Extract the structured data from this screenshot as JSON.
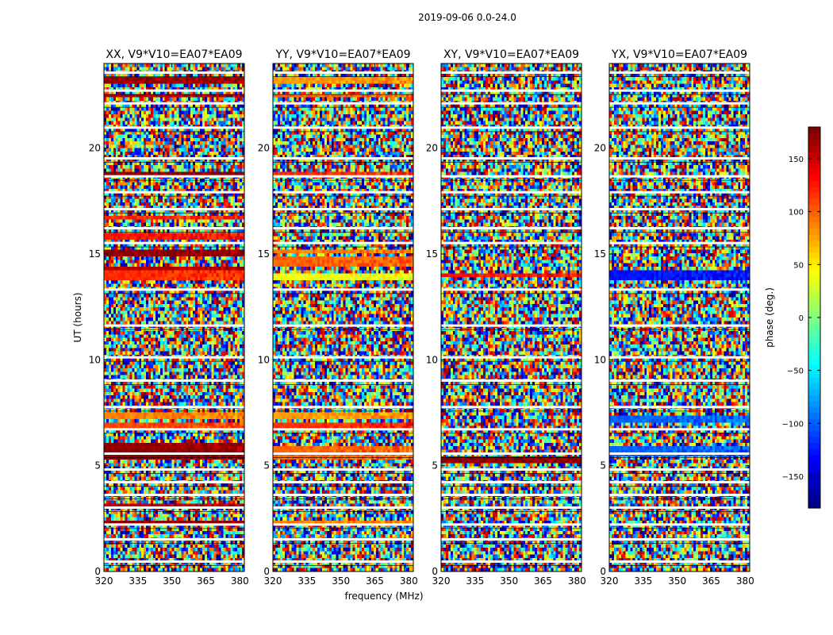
{
  "suptitle": "2019-09-06 0.0-24.0",
  "chart_data": [
    {
      "type": "heatmap",
      "title": "XX, V9*V10=EA07*EA09",
      "x": {
        "label": "",
        "range": [
          320,
          382
        ],
        "ticks": [
          320,
          335,
          350,
          365,
          380
        ]
      },
      "y": {
        "label": "UT (hours)",
        "range": [
          0,
          24
        ],
        "ticks": [
          0,
          5,
          10,
          15,
          20
        ]
      },
      "coherent_bands": [
        {
          "t": [
            23.1,
            23.3
          ],
          "phase": 170
        },
        {
          "t": [
            22.4,
            22.55
          ],
          "phase": 160
        },
        {
          "t": [
            18.8,
            18.95
          ],
          "phase": 175
        },
        {
          "t": [
            16.6,
            16.75
          ],
          "phase": 120
        },
        {
          "t": [
            15.75,
            15.95
          ],
          "phase": 130
        },
        {
          "t": [
            14.8,
            15.15
          ],
          "phase": 175
        },
        {
          "t": [
            14.3,
            14.45
          ],
          "phase": 160
        },
        {
          "t": [
            13.8,
            14.2
          ],
          "phase": 120
        },
        {
          "t": [
            7.2,
            7.6
          ],
          "phase": 90
        },
        {
          "t": [
            6.8,
            7.1
          ],
          "phase": 110
        },
        {
          "t": [
            5.25,
            6.1
          ],
          "phase": 175
        },
        {
          "t": [
            3.05,
            3.15
          ],
          "phase": 160
        },
        {
          "t": [
            2.3,
            2.45
          ],
          "phase": 175
        }
      ]
    },
    {
      "type": "heatmap",
      "title": "YY, V9*V10=EA07*EA09",
      "x": {
        "label": "frequency (MHz)",
        "range": [
          320,
          382
        ],
        "ticks": [
          320,
          335,
          350,
          365,
          380
        ]
      },
      "y": {
        "label": "",
        "range": [
          0,
          24
        ],
        "ticks": [
          0,
          5,
          10,
          15,
          20
        ]
      },
      "coherent_bands": [
        {
          "t": [
            23.1,
            23.3
          ],
          "phase": 80
        },
        {
          "t": [
            22.4,
            22.55
          ],
          "phase": 100
        },
        {
          "t": [
            18.8,
            18.95
          ],
          "phase": 120
        },
        {
          "t": [
            15.0,
            15.2
          ],
          "phase": 90
        },
        {
          "t": [
            14.4,
            14.8
          ],
          "phase": 100
        },
        {
          "t": [
            13.75,
            14.15
          ],
          "phase": 40
        },
        {
          "t": [
            7.2,
            7.6
          ],
          "phase": 80
        },
        {
          "t": [
            6.8,
            7.1
          ],
          "phase": 120
        },
        {
          "t": [
            5.25,
            5.9
          ],
          "phase": 100
        },
        {
          "t": [
            2.3,
            2.45
          ],
          "phase": 90
        }
      ]
    },
    {
      "type": "heatmap",
      "title": "XY, V9*V10=EA07*EA09",
      "x": {
        "label": "",
        "range": [
          320,
          382
        ],
        "ticks": [
          320,
          335,
          350,
          365,
          380
        ]
      },
      "y": {
        "label": "",
        "range": [
          0,
          24
        ],
        "ticks": [
          0,
          5,
          10,
          15,
          20
        ]
      },
      "coherent_bands": [
        {
          "t": [
            13.9,
            14.1
          ],
          "phase": 130
        },
        {
          "t": [
            5.1,
            5.5
          ],
          "phase": 175
        }
      ]
    },
    {
      "type": "heatmap",
      "title": "YX, V9*V10=EA07*EA09",
      "x": {
        "label": "",
        "range": [
          320,
          382
        ],
        "ticks": [
          320,
          335,
          350,
          365,
          380
        ]
      },
      "y": {
        "label": "",
        "range": [
          0,
          24
        ],
        "ticks": [
          0,
          5,
          10,
          15,
          20
        ]
      },
      "coherent_bands": [
        {
          "t": [
            13.8,
            14.3
          ],
          "phase": -130
        },
        {
          "t": [
            7.1,
            7.3
          ],
          "phase": -100
        },
        {
          "t": [
            5.5,
            5.9
          ],
          "phase": -100
        }
      ]
    }
  ],
  "colorbar": {
    "label": "phase (deg.)",
    "range": [
      -180,
      180
    ],
    "ticks": [
      "150",
      "100",
      "50",
      "0",
      "−50",
      "−100",
      "−150"
    ],
    "tick_values": [
      150,
      100,
      50,
      0,
      -50,
      -100,
      -150
    ],
    "colormap": "jet"
  },
  "flag_gaps_hours": [
    0.45,
    1.5,
    2.2,
    3.0,
    3.6,
    4.2,
    4.8,
    5.55,
    6.7,
    7.75,
    9.0,
    10.1,
    11.6,
    13.3,
    15.5,
    16.2,
    17.1,
    17.9,
    18.65,
    19.5,
    20.95,
    22.1,
    22.7,
    23.55
  ]
}
